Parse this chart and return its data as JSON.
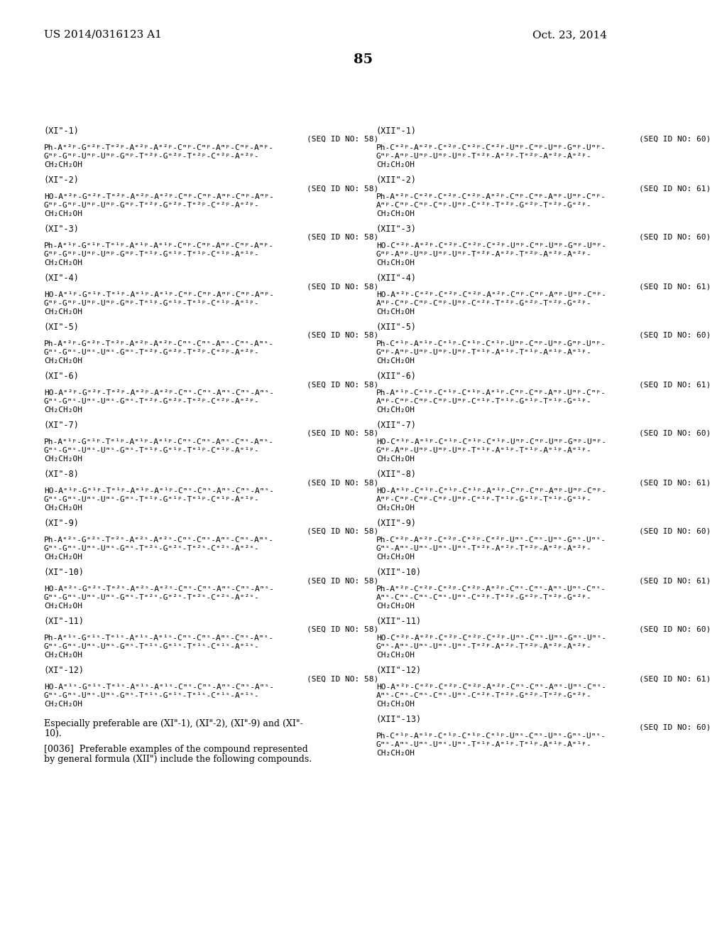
{
  "header_left": "US 2014/0316123 A1",
  "header_right": "Oct. 23, 2014",
  "page_number": "85",
  "background_color": "#ffffff",
  "text_color": "#000000",
  "left_column": [
    {
      "label": "(XI\"-1)",
      "seq": "(SEQ ID NO: 58)",
      "line1": "Ph-Aᵉ²ᵖ-Gᵉ²ᵖ-Tᵉ²ᵖ-Aᵉ²ᵖ-Aᵉ²ᵖ-Cᵐᵖ-Cᵐᵖ-Aᵐᵖ-Cᵐᵖ-Aᵐᵖ-",
      "line2": "Gᵐᵖ-Gᵐᵖ-Uᵐᵖ-Uᵐᵖ-Gᵐᵖ-Tᵉ²ᵖ-Gᵉ²ᵖ-Tᵉ²ᵖ-Cᵉ²ᵖ-Aᵉ²ᵖ-",
      "line3": "CH₂CH₂OH"
    },
    {
      "label": "(XI\"-2)",
      "seq": "(SEQ ID NO: 58)",
      "line1": "HO-Aᵉ²ᵖ-Gᵉ²ᵖ-Tᵉ²ᵖ-Aᵉ²ᵖ-Aᵉ²ᵖ-Cᵐᵖ-Cᵐᵖ-Aᵐᵖ-Cᵐᵖ-Aᵐᵖ-",
      "line2": "Gᵐᵖ-Gᵐᵖ-Uᵐᵖ-Uᵐᵖ-Gᵐᵖ-Tᵉ²ᵖ-Gᵉ²ᵖ-Tᵉ²ᵖ-Cᵉ²ᵖ-Aᵉ²ᵖ-",
      "line3": "CH₂CH₂OH"
    },
    {
      "label": "(XI\"-3)",
      "seq": "(SEQ ID NO: 58)",
      "line1": "Ph-Aᵉ¹ᵖ-Gᵉ¹ᵖ-Tᵉ¹ᵖ-Aᵉ¹ᵖ-Aᵉ¹ᵖ-Cᵐᵖ-Cᵐᵖ-Aᵐᵖ-Cᵐᵖ-Aᵐᵖ-",
      "line2": "Gᵐᵖ-Gᵐᵖ-Uᵐᵖ-Uᵐᵖ-Gᵐᵖ-Tᵉ¹ᵖ-Gᵉ¹ᵖ-Tᵉ¹ᵖ-Cᵉ¹ᵖ-Aᵉ¹ᵖ-",
      "line3": "CH₂CH₂OH"
    },
    {
      "label": "(XI\"-4)",
      "seq": "(SEQ ID NO: 58)",
      "line1": "HO-Aᵉ¹ᵖ-Gᵉ¹ᵖ-Tᵉ¹ᵖ-Aᵉ¹ᵖ-Aᵉ¹ᵖ-Cᵐᵖ-Cᵐᵖ-Aᵐᵖ-Cᵐᵖ-Aᵐᵖ-",
      "line2": "Gᵐᵖ-Gᵐᵖ-Uᵐᵖ-Uᵐᵖ-Gᵐᵖ-Tᵉ¹ᵖ-Gᵉ¹ᵖ-Tᵉ¹ᵖ-Cᵉ¹ᵖ-Aᵉ¹ᵖ-",
      "line3": "CH₂CH₂OH"
    },
    {
      "label": "(XI\"-5)",
      "seq": "(SEQ ID NO: 58)",
      "line1": "Ph-Aᵉ²ᵖ-Gᵉ²ᵖ-Tᵉ²ᵖ-Aᵉ²ᵖ-Aᵉ²ᵖ-Cᵐˢ-Cᵐˢ-Aᵐˢ-Cᵐˢ-Aᵐˢ-",
      "line2": "Gᵐˢ-Gᵐˢ-Uᵐˢ-Uᵐˢ-Gᵐˢ-Tᵉ²ᵖ-Gᵉ²ᵖ-Tᵉ²ᵖ-Cᵉ²ᵖ-Aᵉ²ᵖ-",
      "line3": "CH₂CH₂OH"
    },
    {
      "label": "(XI\"-6)",
      "seq": "(SEQ ID NO: 58)",
      "line1": "HO-Aᵉ²ᵖ-Gᵉ²ᵖ-Tᵉ²ᵖ-Aᵉ²ᵖ-Aᵉ²ᵖ-Cᵐˢ-Cᵐˢ-Aᵐˢ-Cᵐˢ-Aᵐˢ-",
      "line2": "Gᵐˢ-Gᵐˢ-Uᵐˢ-Uᵐˢ-Gᵐˢ-Tᵉ²ᵖ-Gᵉ²ᵖ-Tᵉ²ᵖ-Cᵉ²ᵖ-Aᵉ²ᵖ-",
      "line3": "CH₂CH₂OH"
    },
    {
      "label": "(XI\"-7)",
      "seq": "(SEQ ID NO: 58)",
      "line1": "Ph-Aᵉ¹ᵖ-Gᵉ¹ᵖ-Tᵉ¹ᵖ-Aᵉ¹ᵖ-Aᵉ¹ᵖ-Cᵐˢ-Cᵐˢ-Aᵐˢ-Cᵐˢ-Aᵐˢ-",
      "line2": "Gᵐˢ-Gᵐˢ-Uᵐˢ-Uᵐˢ-Gᵐˢ-Tᵉ¹ᵖ-Gᵉ¹ᵖ-Tᵉ¹ᵖ-Cᵉ¹ᵖ-Aᵉ¹ᵖ-",
      "line3": "CH₂CH₂OH"
    },
    {
      "label": "(XI\"-8)",
      "seq": "(SEQ ID NO: 58)",
      "line1": "HO-Aᵉ¹ᵖ-Gᵉ¹ᵖ-Tᵉ¹ᵖ-Aᵉ¹ᵖ-Aᵉ¹ᵖ-Cᵐˢ-Cᵐˢ-Aᵐˢ-Cᵐˢ-Aᵐˢ-",
      "line2": "Gᵐˢ-Gᵐˢ-Uᵐˢ-Uᵐˢ-Gᵐˢ-Tᵉ¹ᵖ-Gᵉ¹ᵖ-Tᵉ¹ᵖ-Cᵉ¹ᵖ-Aᵉ¹ᵖ-",
      "line3": "CH₂CH₂OH"
    },
    {
      "label": "(XI\"-9)",
      "seq": "(SEQ ID NO: 58)",
      "line1": "Ph-Aᵉ²ˢ-Gᵉ²ˢ-Tᵉ²ˢ-Aᵉ²ˢ-Aᵉ²ˢ-Cᵐˢ-Cᵐˢ-Aᵐˢ-Cᵐˢ-Aᵐˢ-",
      "line2": "Gᵐˢ-Gᵐˢ-Uᵐˢ-Uᵐˢ-Gᵐˢ-Tᵉ²ˢ-Gᵉ²ˢ-Tᵉ²ˢ-Cᵉ²ˢ-Aᵉ²ˢ-",
      "line3": "CH₂CH₂OH"
    },
    {
      "label": "(XI\"-10)",
      "seq": "(SEQ ID NO: 58)",
      "line1": "HO-Aᵉ²ˢ-Gᵉ²ˢ-Tᵉ²ˢ-Aᵉ²ˢ-Aᵉ²ˢ-Cᵐˢ-Cᵐˢ-Aᵐˢ-Cᵐˢ-Aᵐˢ-",
      "line2": "Gᵐˢ-Gᵐˢ-Uᵐˢ-Uᵐˢ-Gᵐˢ-Tᵉ²ˢ-Gᵉ²ˢ-Tᵉ²ˢ-Cᵉ²ˢ-Aᵉ²ˢ-",
      "line3": "CH₂CH₂OH"
    },
    {
      "label": "(XI\"-11)",
      "seq": "(SEQ ID NO: 58)",
      "line1": "Ph-Aᵉ¹ˢ-Gᵉ¹ˢ-Tᵉ¹ˢ-Aᵉ¹ˢ-Aᵉ¹ˢ-Cᵐˢ-Cᵐˢ-Aᵐˢ-Cᵐˢ-Aᵐˢ-",
      "line2": "Gᵐˢ-Gᵐˢ-Uᵐˢ-Uᵐˢ-Gᵐˢ-Tᵉ¹ˢ-Gᵉ¹ˢ-Tᵉ¹ˢ-Cᵉ¹ˢ-Aᵉ¹ˢ-",
      "line3": "CH₂CH₂OH"
    },
    {
      "label": "(XI\"-12)",
      "seq": "(SEQ ID NO: 58)",
      "line1": "HO-Aᵉ¹ˢ-Gᵉ¹ˢ-Tᵉ¹ˢ-Aᵉ¹ˢ-Aᵉ¹ˢ-Cᵐˢ-Cᵐˢ-Aᵐˢ-Cᵐˢ-Aᵐˢ-",
      "line2": "Gᵐˢ-Gᵐˢ-Uᵐˢ-Uᵐˢ-Gᵐˢ-Tᵉ¹ˢ-Gᵉ¹ˢ-Tᵉ¹ˢ-Cᵉ¹ˢ-Aᵉ¹ˢ-",
      "line3": "CH₂CH₂OH"
    }
  ],
  "right_column": [
    {
      "label": "(XII\"-1)",
      "seq": "(SEQ ID NO: 60)",
      "line1": "Ph-Cᵉ²ᵖ-Aᵉ²ᵖ-Cᵉ²ᵖ-Cᵉ²ᵖ-Cᵉ²ᵖ-Uᵐᵖ-Cᵐᵖ-Uᵐᵖ-Gᵐᵖ-Uᵐᵖ-",
      "line2": "Gᵐᵖ-Aᵐᵖ-Uᵐᵖ-Uᵐᵖ-Uᵐᵖ-Tᵉ²ᵖ-Aᵉ²ᵖ-Tᵉ²ᵖ-Aᵉ²ᵖ-Aᵉ²ᵖ-",
      "line3": "CH₂CH₂OH"
    },
    {
      "label": "(XII\"-2)",
      "seq": "(SEQ ID NO: 61)",
      "line1": "Ph-Aᵉ²ᵖ-Cᵉ²ᵖ-Cᵉ²ᵖ-Cᵉ²ᵖ-Aᵉ²ᵖ-Cᵐᵖ-Cᵐᵖ-Aᵐᵖ-Uᵐᵖ-Cᵐᵖ-",
      "line2": "Aᵐᵖ-Cᵐᵖ-Cᵐᵖ-Cᵐᵖ-Uᵐᵖ-Cᵉ²ᵖ-Tᵉ²ᵖ-Gᵉ²ᵖ-Tᵉ²ᵖ-Gᵉ²ᵖ-",
      "line3": "CH₂CH₂OH"
    },
    {
      "label": "(XII\"-3)",
      "seq": "(SEQ ID NO: 60)",
      "line1": "HO-Cᵉ²ᵖ-Aᵉ²ᵖ-Cᵉ²ᵖ-Cᵉ²ᵖ-Cᵉ²ᵖ-Uᵐᵖ-Cᵐᵖ-Uᵐᵖ-Gᵐᵖ-Uᵐᵖ-",
      "line2": "Gᵐᵖ-Aᵐᵖ-Uᵐᵖ-Uᵐᵖ-Uᵐᵖ-Tᵉ²ᵖ-Aᵉ²ᵖ-Tᵉ²ᵖ-Aᵉ²ᵖ-Aᵉ²ᵖ-",
      "line3": "CH₂CH₂OH"
    },
    {
      "label": "(XII\"-4)",
      "seq": "(SEQ ID NO: 61)",
      "line1": "HO-Aᵉ²ᵖ-Cᵉ²ᵖ-Cᵉ²ᵖ-Cᵉ²ᵖ-Aᵉ²ᵖ-Cᵐᵖ-Cᵐᵖ-Aᵐᵖ-Uᵐᵖ-Cᵐᵖ-",
      "line2": "Aᵐᵖ-Cᵐᵖ-Cᵐᵖ-Cᵐᵖ-Uᵐᵖ-Cᵉ²ᵖ-Tᵉ²ᵖ-Gᵉ²ᵖ-Tᵉ²ᵖ-Gᵉ²ᵖ-",
      "line3": "CH₂CH₂OH"
    },
    {
      "label": "(XII\"-5)",
      "seq": "(SEQ ID NO: 60)",
      "line1": "Ph-Cᵉ¹ᵖ-Aᵉ¹ᵖ-Cᵉ¹ᵖ-Cᵉ¹ᵖ-Cᵉ¹ᵖ-Uᵐᵖ-Cᵐᵖ-Uᵐᵖ-Gᵐᵖ-Uᵐᵖ-",
      "line2": "Gᵐᵖ-Aᵐᵖ-Uᵐᵖ-Uᵐᵖ-Uᵐᵖ-Tᵉ¹ᵖ-Aᵉ¹ᵖ-Tᵉ¹ᵖ-Aᵉ¹ᵖ-Aᵉ¹ᵖ-",
      "line3": "CH₂CH₂OH"
    },
    {
      "label": "(XII\"-6)",
      "seq": "(SEQ ID NO: 61)",
      "line1": "Ph-Aᵉ¹ᵖ-Cᵉ¹ᵖ-Cᵉ¹ᵖ-Cᵉ¹ᵖ-Aᵉ¹ᵖ-Cᵐᵖ-Cᵐᵖ-Aᵐᵖ-Uᵐᵖ-Cᵐᵖ-",
      "line2": "Aᵐᵖ-Cᵐᵖ-Cᵐᵖ-Cᵐᵖ-Uᵐᵖ-Cᵉ¹ᵖ-Tᵉ¹ᵖ-Gᵉ¹ᵖ-Tᵉ¹ᵖ-Gᵉ¹ᵖ-",
      "line3": "CH₂CH₂OH"
    },
    {
      "label": "(XII\"-7)",
      "seq": "(SEQ ID NO: 60)",
      "line1": "HO-Cᵉ¹ᵖ-Aᵉ¹ᵖ-Cᵉ¹ᵖ-Cᵉ¹ᵖ-Cᵉ¹ᵖ-Uᵐᵖ-Cᵐᵖ-Uᵐᵖ-Gᵐᵖ-Uᵐᵖ-",
      "line2": "Gᵐᵖ-Aᵐᵖ-Uᵐᵖ-Uᵐᵖ-Uᵐᵖ-Tᵉ¹ᵖ-Aᵉ¹ᵖ-Tᵉ¹ᵖ-Aᵉ¹ᵖ-Aᵉ¹ᵖ-",
      "line3": "CH₂CH₂OH"
    },
    {
      "label": "(XII\"-8)",
      "seq": "(SEQ ID NO: 61)",
      "line1": "HO-Aᵉ¹ᵖ-Cᵉ¹ᵖ-Cᵉ¹ᵖ-Cᵉ¹ᵖ-Aᵉ¹ᵖ-Cᵐᵖ-Cᵐᵖ-Aᵐᵖ-Uᵐᵖ-Cᵐᵖ-",
      "line2": "Aᵐᵖ-Cᵐᵖ-Cᵐᵖ-Cᵐᵖ-Uᵐᵖ-Cᵉ¹ᵖ-Tᵉ¹ᵖ-Gᵉ¹ᵖ-Tᵉ¹ᵖ-Gᵉ¹ᵖ-",
      "line3": "CH₂CH₂OH"
    },
    {
      "label": "(XII\"-9)",
      "seq": "(SEQ ID NO: 60)",
      "line1": "Ph-Cᵉ²ᵖ-Aᵉ²ᵖ-Cᵉ²ᵖ-Cᵉ²ᵖ-Cᵉ²ᵖ-Uᵐˢ-Cᵐˢ-Uᵐˢ-Gᵐˢ-Uᵐˢ-",
      "line2": "Gᵐˢ-Aᵐˢ-Uᵐˢ-Uᵐˢ-Uᵐˢ-Tᵉ²ᵖ-Aᵉ²ᵖ-Tᵉ²ᵖ-Aᵉ²ᵖ-Aᵉ²ᵖ-",
      "line3": "CH₂CH₂OH"
    },
    {
      "label": "(XII\"-10)",
      "seq": "(SEQ ID NO: 61)",
      "line1": "Ph-Aᵉ²ᵖ-Cᵉ²ᵖ-Cᵉ²ᵖ-Cᵉ²ᵖ-Aᵉ²ᵖ-Cᵐˢ-Cᵐˢ-Aᵐˢ-Uᵐˢ-Cᵐˢ-",
      "line2": "Aᵐˢ-Cᵐˢ-Cᵐˢ-Cᵐˢ-Uᵐˢ-Cᵉ²ᵖ-Tᵉ²ᵖ-Gᵉ²ᵖ-Tᵉ²ᵖ-Gᵉ²ᵖ-",
      "line3": "CH₂CH₂OH"
    },
    {
      "label": "(XII\"-11)",
      "seq": "(SEQ ID NO: 60)",
      "line1": "HO-Cᵉ²ᵖ-Aᵉ²ᵖ-Cᵉ²ᵖ-Cᵉ²ᵖ-Cᵉ²ᵖ-Uᵐˢ-Cᵐˢ-Uᵐˢ-Gᵐˢ-Uᵐˢ-",
      "line2": "Gᵐˢ-Aᵐˢ-Uᵐˢ-Uᵐˢ-Uᵐˢ-Tᵉ²ᵖ-Aᵉ²ᵖ-Tᵉ²ᵖ-Aᵉ²ᵖ-Aᵉ²ᵖ-",
      "line3": "CH₂CH₂OH"
    },
    {
      "label": "(XII\"-12)",
      "seq": "(SEQ ID NO: 61)",
      "line1": "HO-Aᵉ²ᵖ-Cᵉ²ᵖ-Cᵉ²ᵖ-Cᵉ²ᵖ-Aᵉ²ᵖ-Cᵐˢ-Cᵐˢ-Aᵐˢ-Uᵐˢ-Cᵐˢ-",
      "line2": "Aᵐˢ-Cᵐˢ-Cᵐˢ-Cᵐˢ-Uᵐˢ-Cᵉ²ᵖ-Tᵉ²ᵖ-Gᵉ²ᵖ-Tᵉ²ᵖ-Gᵉ²ᵖ-",
      "line3": "CH₂CH₂OH"
    },
    {
      "label": "(XII\"-13)",
      "seq": "(SEQ ID NO: 60)",
      "line1": "Ph-Cᵉ¹ᵖ-Aᵉ¹ᵖ-Cᵉ¹ᵖ-Cᵉ¹ᵖ-Cᵉ¹ᵖ-Uᵐˢ-Cᵐˢ-Uᵐˢ-Gᵐˢ-Uᵐˢ-",
      "line2": "Gᵐˢ-Aᵐˢ-Uᵐˢ-Uᵐˢ-Uᵐˢ-Tᵉ¹ᵖ-Aᵉ¹ᵖ-Tᵉ¹ᵖ-Aᵉ¹ᵖ-Aᵉ¹ᵖ-",
      "line3": "CH₂CH₂OH"
    }
  ],
  "footer_text1": "Especially preferable are (XI\"-1), (XI\"-2), (XI\"-9) and (XI\"-",
  "footer_text2": "10).",
  "footer_para_line1": "[0036]  Preferable examples of the compound represented",
  "footer_para_line2": "by general formula (XII\") include the following compounds."
}
